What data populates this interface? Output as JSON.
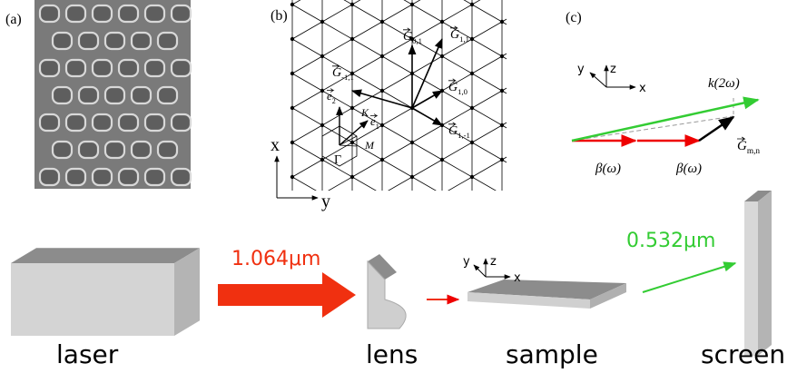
{
  "panel_a": {
    "label": "(a)"
  },
  "panel_b": {
    "label": "(b)",
    "vectors": [
      {
        "symbol": "G",
        "subscript": "1,1"
      },
      {
        "symbol": "G",
        "subscript": "0,1"
      },
      {
        "symbol": "G",
        "subscript": "-1,1"
      },
      {
        "symbol": "G",
        "subscript": "1,0"
      },
      {
        "symbol": "G",
        "subscript": "1,-1"
      },
      {
        "symbol": "e",
        "subscript": "2"
      },
      {
        "symbol": "e",
        "subscript": "1"
      }
    ],
    "points": [
      "K",
      "M",
      "Γ"
    ],
    "axes": [
      "x",
      "y"
    ]
  },
  "panel_c": {
    "label": "(c)",
    "axes": [
      "z",
      "y",
      "x"
    ],
    "k_label": "k(2ω)",
    "beta_labels": [
      "β(ω)",
      "β(ω)"
    ],
    "g_label": {
      "symbol": "G",
      "subscript": "m,n"
    }
  },
  "setup": {
    "input_wavelength": "1.064μm",
    "output_wavelength": "0.532μm",
    "axes": [
      "z",
      "y",
      "x"
    ],
    "components": [
      "laser",
      "lens",
      "sample",
      "screen"
    ]
  }
}
